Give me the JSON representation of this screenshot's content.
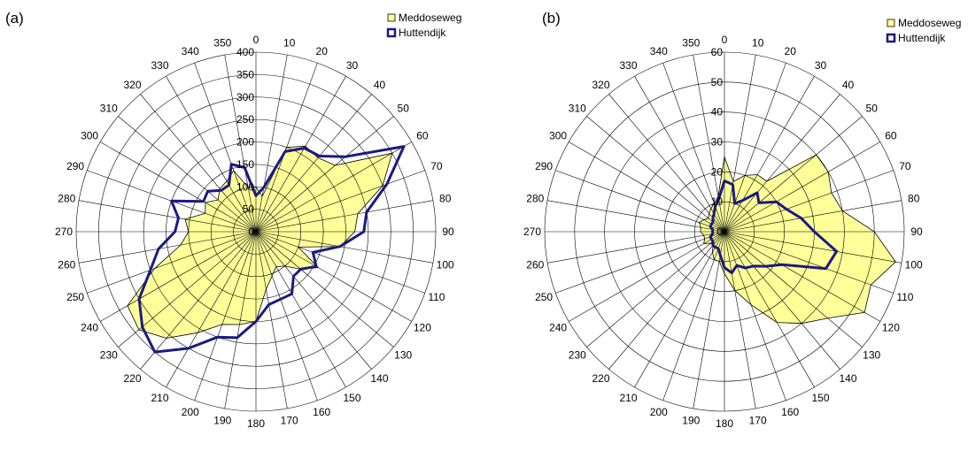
{
  "chart_data": [
    {
      "type": "radar",
      "panel_label": "(a)",
      "angles": [
        0,
        10,
        20,
        30,
        40,
        50,
        60,
        70,
        80,
        90,
        100,
        110,
        120,
        130,
        140,
        150,
        160,
        170,
        180,
        190,
        200,
        210,
        220,
        230,
        240,
        250,
        260,
        270,
        280,
        290,
        300,
        310,
        320,
        330,
        340,
        350
      ],
      "angle_labels": [
        "0",
        "10",
        "20",
        "30",
        "40",
        "50",
        "60",
        "70",
        "80",
        "90",
        "100",
        "110",
        "120",
        "130",
        "140",
        "150",
        "160",
        "170",
        "180",
        "190",
        "200",
        "210",
        "220",
        "230",
        "240",
        "250",
        "260",
        "270",
        "280",
        "290",
        "300",
        "310",
        "320",
        "330",
        "340",
        "350"
      ],
      "radial_range": [
        0,
        400
      ],
      "radial_ticks": [
        0,
        50,
        100,
        150,
        200,
        250,
        300,
        350,
        400
      ],
      "radial_tick_labels": [
        "0",
        "50",
        "100",
        "150",
        "200",
        "250",
        "300",
        "350",
        "400"
      ],
      "grid": true,
      "legend_position": "top-right",
      "series": [
        {
          "name": "Meddoseweg",
          "style": "filled-area",
          "color": "#ffff99",
          "edge_color": "#000000",
          "values": [
            100,
            80,
            200,
            220,
            215,
            230,
            350,
            300,
            230,
            220,
            190,
            100,
            160,
            130,
            100,
            90,
            105,
            130,
            200,
            210,
            220,
            260,
            310,
            340,
            330,
            240,
            170,
            150,
            160,
            120,
            130,
            110,
            125,
            130,
            145,
            100
          ]
        },
        {
          "name": "Huttendijk",
          "style": "line",
          "color": "#1a1a80",
          "values": [
            80,
            100,
            190,
            215,
            220,
            260,
            380,
            310,
            250,
            240,
            190,
            135,
            155,
            130,
            130,
            160,
            160,
            165,
            200,
            240,
            250,
            300,
            350,
            330,
            300,
            250,
            220,
            180,
            175,
            200,
            135,
            140,
            120,
            120,
            160,
            145
          ]
        }
      ]
    },
    {
      "type": "radar",
      "panel_label": "(b)",
      "angles": [
        0,
        10,
        20,
        30,
        40,
        50,
        60,
        70,
        80,
        90,
        100,
        110,
        120,
        130,
        140,
        150,
        160,
        170,
        180,
        190,
        200,
        210,
        220,
        230,
        240,
        250,
        260,
        270,
        280,
        290,
        300,
        310,
        320,
        330,
        340,
        350
      ],
      "angle_labels": [
        "0",
        "10",
        "20",
        "30",
        "40",
        "50",
        "60",
        "70",
        "80",
        "90",
        "100",
        "110",
        "120",
        "130",
        "140",
        "150",
        "160",
        "170",
        "180",
        "190",
        "200",
        "210",
        "220",
        "230",
        "240",
        "250",
        "260",
        "270",
        "280",
        "290",
        "300",
        "310",
        "320",
        "330",
        "340",
        "350"
      ],
      "radial_range": [
        0,
        60
      ],
      "radial_ticks": [
        0,
        10,
        20,
        30,
        40,
        50,
        60
      ],
      "radial_tick_labels": [
        "0",
        "10",
        "20",
        "30",
        "40",
        "50",
        "60"
      ],
      "grid": true,
      "legend_position": "top-right",
      "series": [
        {
          "name": "Meddoseweg",
          "style": "filled-area",
          "color": "#ffff99",
          "edge_color": "#000000",
          "values": [
            25,
            17,
            20,
            22,
            22,
            40,
            40,
            38,
            40,
            50,
            58,
            52,
            54,
            45,
            40,
            35,
            26,
            20,
            14,
            10,
            10,
            8,
            6,
            6,
            8,
            7,
            7,
            8,
            8,
            9,
            8,
            7,
            8,
            9,
            10,
            12
          ]
        },
        {
          "name": "Huttendijk",
          "style": "line",
          "color": "#1a1a80",
          "values": [
            17,
            16,
            10,
            12,
            17,
            15,
            20,
            22,
            26,
            30,
            38,
            36,
            22,
            18,
            15,
            14,
            12,
            14,
            12,
            8,
            6,
            6,
            6,
            5,
            5,
            5,
            4,
            4,
            4,
            5,
            5,
            5,
            6,
            7,
            9,
            11
          ]
        }
      ]
    }
  ]
}
